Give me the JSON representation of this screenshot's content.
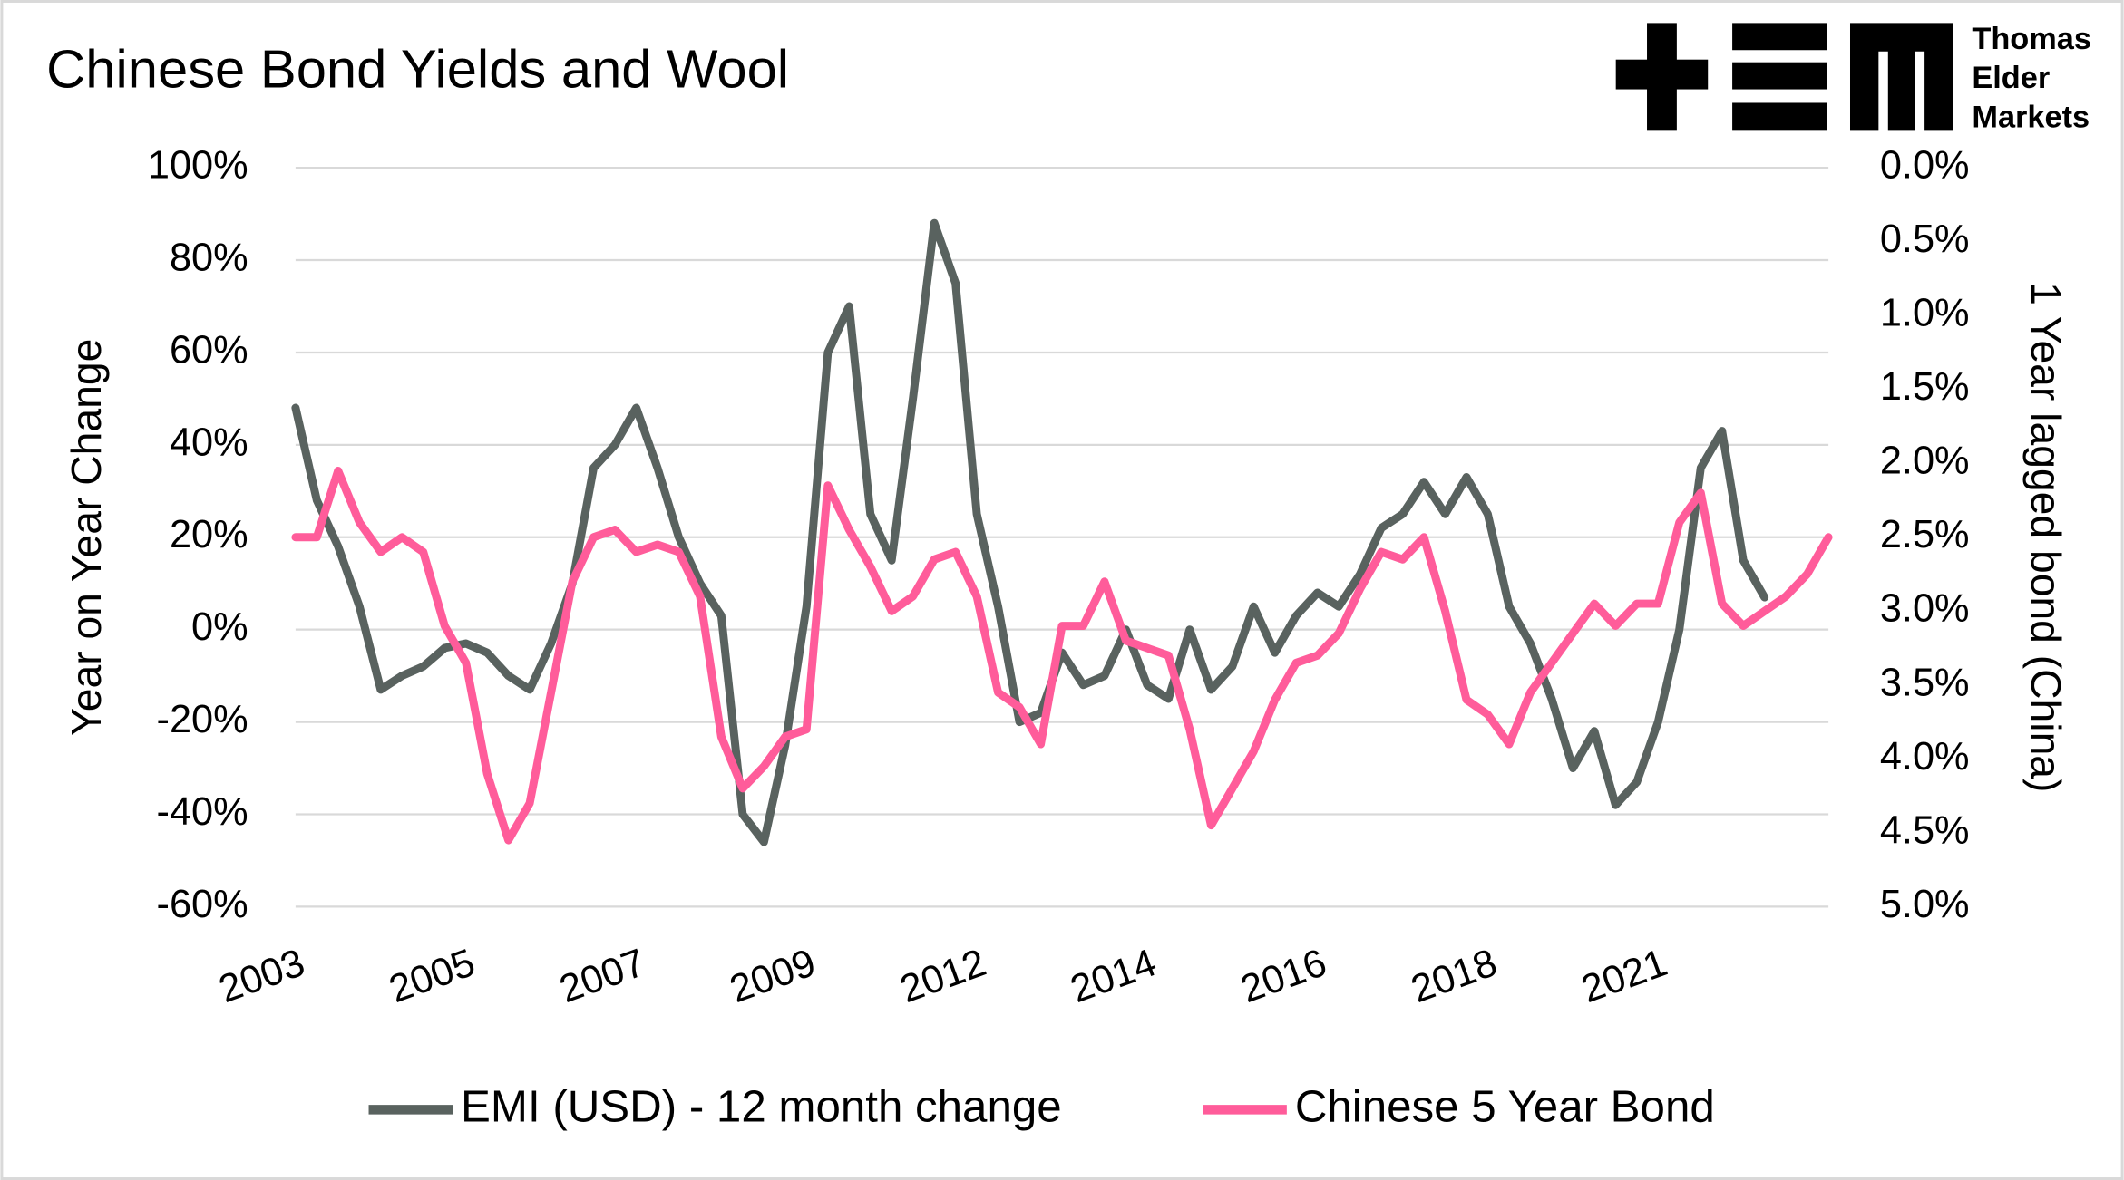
{
  "chart_data": {
    "type": "line",
    "title": "Chinese Bond Yields and Wool",
    "y_label": "Year on Year Change",
    "y2_label": "1 Year lagged bond (China)",
    "categories": [
      "2003",
      null,
      null,
      null,
      null,
      null,
      null,
      null,
      "2005",
      null,
      null,
      null,
      null,
      null,
      null,
      null,
      "2007",
      null,
      null,
      null,
      null,
      null,
      null,
      null,
      "2009",
      null,
      null,
      null,
      null,
      null,
      null,
      null,
      "2012",
      null,
      null,
      null,
      null,
      null,
      null,
      null,
      "2014",
      null,
      null,
      null,
      null,
      null,
      null,
      null,
      "2016",
      null,
      null,
      null,
      null,
      null,
      null,
      null,
      "2018",
      null,
      null,
      null,
      null,
      null,
      null,
      null,
      "2021",
      null,
      null,
      null,
      null,
      null,
      null,
      null,
      null
    ],
    "series": [
      {
        "name": "EMI (USD) - 12 month change",
        "color": "#59625f",
        "axis": "y",
        "values": [
          48,
          28,
          18,
          5,
          -13,
          -10,
          -8,
          -4,
          -3,
          -5,
          -10,
          -13,
          -3,
          10,
          35,
          40,
          48,
          35,
          20,
          10,
          3,
          -40,
          -46,
          -25,
          5,
          60,
          70,
          25,
          15,
          50,
          88,
          75,
          25,
          5,
          -20,
          -18,
          -5,
          -12,
          -10,
          0,
          -12,
          -15,
          0,
          -13,
          -8,
          5,
          -5,
          3,
          8,
          5,
          12,
          22,
          25,
          32,
          25,
          33,
          25,
          5,
          -3,
          -15,
          -30,
          -22,
          -38,
          -33,
          -20,
          0,
          35,
          43,
          15,
          7,
          null,
          null,
          null
        ]
      },
      {
        "name": "Chinese 5 Year Bond",
        "color": "#ff5c9a",
        "axis": "y2",
        "values": [
          2.5,
          2.5,
          2.05,
          2.4,
          2.6,
          2.5,
          2.6,
          3.1,
          3.35,
          4.1,
          4.55,
          4.3,
          3.55,
          2.8,
          2.5,
          2.45,
          2.6,
          2.55,
          2.6,
          2.9,
          3.85,
          4.2,
          4.05,
          3.85,
          3.8,
          2.15,
          2.45,
          2.7,
          3.0,
          2.9,
          2.65,
          2.6,
          2.9,
          3.55,
          3.65,
          3.9,
          3.1,
          3.1,
          2.8,
          3.2,
          3.25,
          3.3,
          3.8,
          4.45,
          4.2,
          3.95,
          3.6,
          3.35,
          3.3,
          3.15,
          2.85,
          2.6,
          2.65,
          2.5,
          3.0,
          3.6,
          3.7,
          3.9,
          3.55,
          3.35,
          3.15,
          2.95,
          3.1,
          2.95,
          2.95,
          2.4,
          2.2,
          2.95,
          3.1,
          3.0,
          2.9,
          2.75,
          2.5
        ]
      }
    ],
    "ylim": [
      -60,
      100
    ],
    "yticks": [
      {
        "value": -60,
        "label": "-60%"
      },
      {
        "value": -40,
        "label": "-40%"
      },
      {
        "value": -20,
        "label": "-20%"
      },
      {
        "value": 0,
        "label": "0%"
      },
      {
        "value": 20,
        "label": "20%"
      },
      {
        "value": 40,
        "label": "40%"
      },
      {
        "value": 60,
        "label": "60%"
      },
      {
        "value": 80,
        "label": "80%"
      },
      {
        "value": 100,
        "label": "100%"
      }
    ],
    "y2lim": [
      5,
      0
    ],
    "y2ticks": [
      {
        "value": 5,
        "label": "5.0%"
      },
      {
        "value": 4.5,
        "label": "4.5%"
      },
      {
        "value": 4,
        "label": "4.0%"
      },
      {
        "value": 3.5,
        "label": "3.5%"
      },
      {
        "value": 3,
        "label": "3.0%"
      },
      {
        "value": 2.5,
        "label": "2.5%"
      },
      {
        "value": 2,
        "label": "2.0%"
      },
      {
        "value": 1.5,
        "label": "1.5%"
      },
      {
        "value": 1,
        "label": "1.0%"
      },
      {
        "value": 0.5,
        "label": "0.5%"
      },
      {
        "value": 0,
        "label": "0.0%"
      }
    ],
    "grid": true,
    "legend": "bottom"
  },
  "logo": {
    "lines": [
      "Thomas",
      "Elder",
      "Markets"
    ]
  }
}
